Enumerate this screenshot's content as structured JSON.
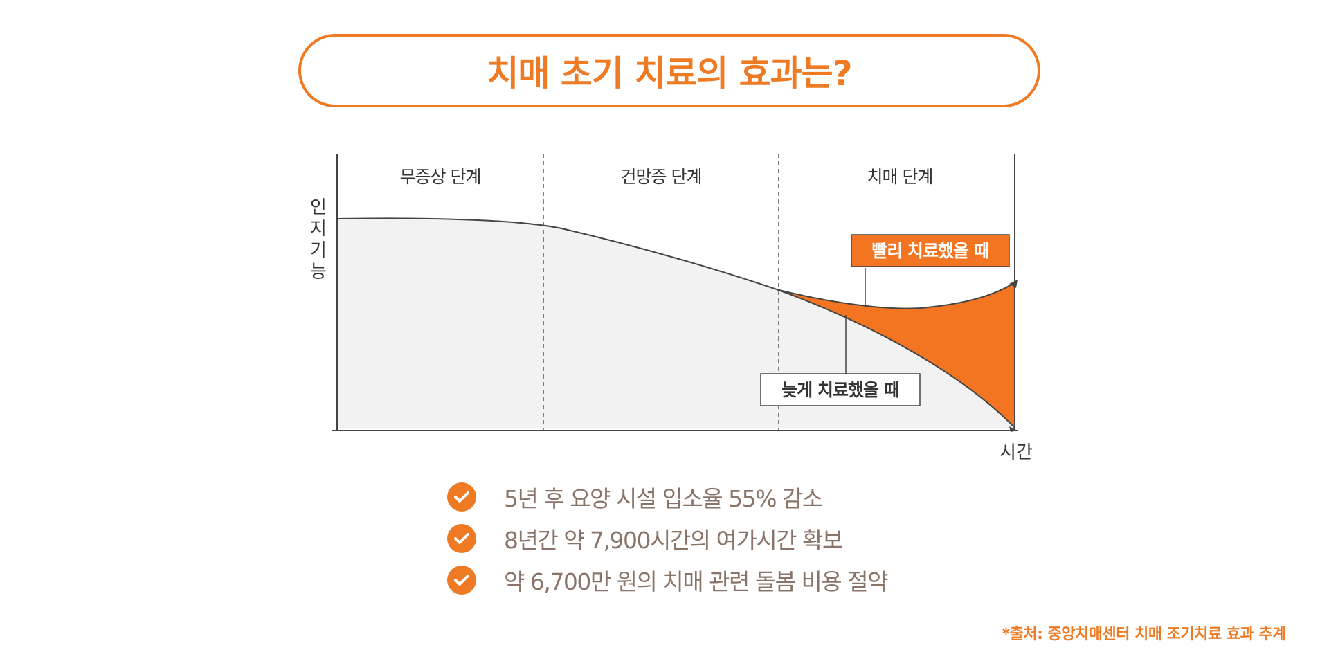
{
  "title": "치매 초기 치료의 효과는?",
  "diagram": {
    "phases": [
      "무증상 단계",
      "건망증 단계",
      "치매 단계"
    ],
    "y_axis_label": "인지기능",
    "x_axis_label": "시간",
    "early_label": "빨리 치료했을 때",
    "late_label": "늦게 치료했을 때"
  },
  "benefits": [
    "5년 후 요양 시설 입소율 55% 감소",
    "8년간 약 7,900시간의 여가시간 확보",
    "약 6,700만 원의 치매 관련 돌봄 비용 절약"
  ],
  "source": "*출처: 중앙치매센터 치매 조기치료 효과 추계",
  "colors": {
    "accent": "#ee7a23",
    "fill_area": "#f2f2f2",
    "line": "#444444",
    "benefit_text": "#8a7468"
  }
}
